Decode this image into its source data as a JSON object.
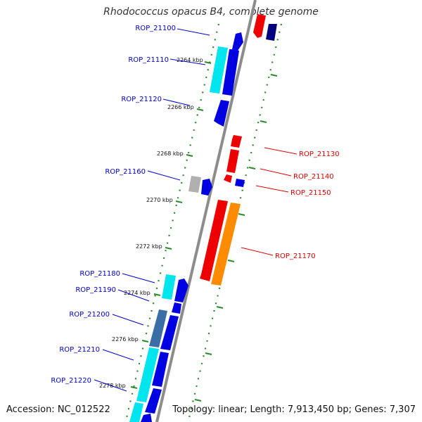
{
  "title": "Rhodococcus opacus B4, complete genome",
  "accession": "Accession: NC_012522",
  "summary": "Topology: linear; Length: 7,913,450 bp; Genes: 7,307",
  "colors": {
    "backbone": "#8c8c8c",
    "forward_gene": "#0000e0",
    "reverse_gene": "#ee0000",
    "gene_label_forward": "#0000cc",
    "gene_label_reverse": "#dd0000",
    "tick": "#2a8a2a"
  },
  "kbp_ticks": [
    "2264 kbp",
    "2266 kbp",
    "2268 kbp",
    "2270 kbp",
    "2272 kbp",
    "2274 kbp",
    "2276 kbp",
    "2278 kbp"
  ],
  "genes_left": [
    "ROP_21100",
    "ROP_21110",
    "ROP_21120",
    "ROP_21160",
    "ROP_21180",
    "ROP_21190",
    "ROP_21200",
    "ROP_21210",
    "ROP_21220"
  ],
  "genes_right": [
    "ROP_21130",
    "ROP_21140",
    "ROP_21150",
    "ROP_21170"
  ]
}
